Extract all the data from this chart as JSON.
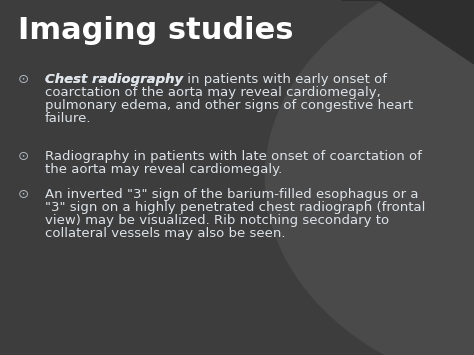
{
  "title": "Imaging studies",
  "title_fontsize": 22,
  "title_color": "#ffffff",
  "background_left": "#3d3d3d",
  "background_right": "#4a4a4a",
  "bullet_color": "#b0b8c0",
  "text_color": "#dde3e8",
  "body_fontsize": 9.5,
  "bullet1_bold": "Chest radiography",
  "bullet1_rest": " in patients with early onset of\ncoarctation of the aorta may reveal cardiomegaly,\npulmonary edema, and other signs of congestive heart\nfailure.",
  "bullet2_text": "Radiography in patients with late onset of coarctation of\nthe aorta may reveal cardiomegaly.",
  "bullet3_text": "An inverted \"3\" sign of the barium-filled esophagus or a\n\"3\" sign on a highly penetrated chest radiograph (frontal\nview) may be visualized. Rib notching secondary to\ncollateral vessels may also be seen.",
  "figwidth": 4.74,
  "figheight": 3.55,
  "dpi": 100
}
